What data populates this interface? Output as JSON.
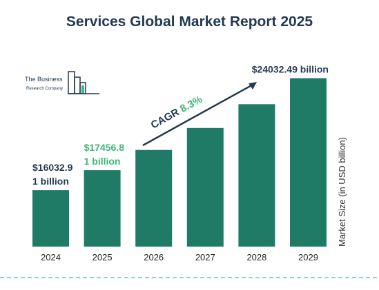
{
  "title": "Services Global Market Report 2025",
  "logo": {
    "name": "The Business",
    "sub": "Research Company"
  },
  "chart_data": {
    "type": "bar",
    "categories": [
      "2024",
      "2025",
      "2026",
      "2027",
      "2028",
      "2029"
    ],
    "values": [
      16032.91,
      17456.81,
      18905,
      20474,
      22173,
      24032.49
    ],
    "ylabel": "Market Size (in USD billion)",
    "ylim": [
      12000,
      24500
    ],
    "grid": false,
    "bar_color": "#1f7a66",
    "labels": [
      {
        "index": 0,
        "lines": [
          "$16032.9",
          "1 billion"
        ],
        "color": "#243a52"
      },
      {
        "index": 1,
        "lines": [
          "$17456.8",
          "1 billion"
        ],
        "color": "#3cb878"
      },
      {
        "index": 5,
        "lines": [
          "$24032.49 billion"
        ],
        "color": "#243a52"
      }
    ],
    "annotation": {
      "prefix": "CAGR ",
      "value": "8.3%",
      "prefix_color": "#243a52",
      "value_color": "#3cb878"
    }
  },
  "footer_line_color": "#4fb3bf"
}
